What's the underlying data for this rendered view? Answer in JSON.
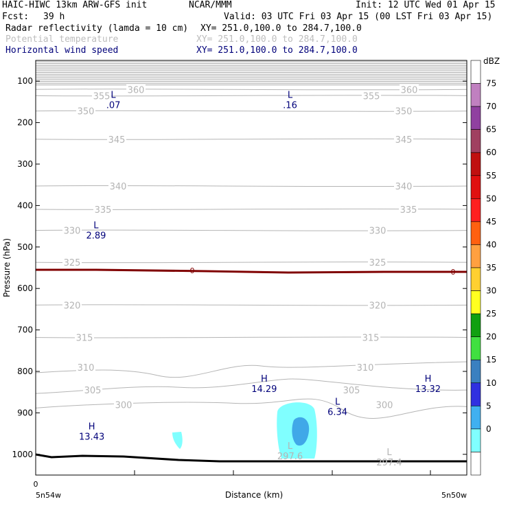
{
  "header": {
    "model": "HAIC-HIWC 13km ARW-GFS init",
    "org": "NCAR/MMM",
    "init": "Init: 12 UTC Wed 01 Apr 15",
    "fcst_label": "Fcst:",
    "fcst_value": "39 h",
    "valid": "Valid: 03 UTC Fri 03 Apr 15 (00 LST Fri 03 Apr 15)",
    "field1": "Radar reflectivity (lamda = 10 cm)",
    "field1_xy": "XY= 251.0,100.0 to 284.7,100.0",
    "field2": "Potential temperature",
    "field2_xy": "XY= 251.0,100.0 to 284.7,100.0",
    "field3": "Horizontal wind speed",
    "field3_xy": "XY= 251.0,100.0 to 284.7,100.0"
  },
  "colors": {
    "theta": "#b4b4b4",
    "wind": "#00007a",
    "freezing": "#800000",
    "terrain": "#000000"
  },
  "chart_data": {
    "type": "cross-section",
    "ylabel": "Pressure (hPa)",
    "xlabel": "Distance (km)",
    "y_ticks": [
      100,
      200,
      300,
      400,
      500,
      600,
      700,
      800,
      900,
      1000
    ],
    "ylim": [
      1050,
      50
    ],
    "x_start_label": "0",
    "x_left_label": "5n54w",
    "x_right_label": "5n50w",
    "theta_levels": [
      {
        "value": "300",
        "p": 880
      },
      {
        "value": "305",
        "p": 845
      },
      {
        "value": "310",
        "p": 790
      },
      {
        "value": "315",
        "p": 718
      },
      {
        "value": "320",
        "p": 640
      },
      {
        "value": "325",
        "p": 537
      },
      {
        "value": "330",
        "p": 460
      },
      {
        "value": "335",
        "p": 409
      },
      {
        "value": "340",
        "p": 353
      },
      {
        "value": "345",
        "p": 240
      },
      {
        "value": "350",
        "p": 172
      },
      {
        "value": "355",
        "p": 135
      },
      {
        "value": "360",
        "p": 120
      }
    ],
    "freezing_level": {
      "label": "0",
      "p": 558
    },
    "wind_extrema": [
      {
        "type": "L",
        "value": ".07",
        "x": 0.18,
        "p": 140
      },
      {
        "type": "L",
        "value": ".16",
        "x": 0.59,
        "p": 140
      },
      {
        "type": "L",
        "value": "2.89",
        "x": 0.14,
        "p": 455
      },
      {
        "type": "H",
        "value": "14.29",
        "x": 0.53,
        "p": 825
      },
      {
        "type": "H",
        "value": "13.32",
        "x": 0.91,
        "p": 825
      },
      {
        "type": "L",
        "value": "6.34",
        "x": 0.7,
        "p": 880
      },
      {
        "type": "H",
        "value": "13.43",
        "x": 0.13,
        "p": 940
      }
    ],
    "theta_extrema": [
      {
        "type": "L",
        "value": "297.6",
        "x": 0.59,
        "p": 1000
      },
      {
        "type": "L",
        "value": "297.4",
        "x": 0.82,
        "p": 1015
      }
    ],
    "colorbar": {
      "unit": "dBZ",
      "levels": [
        "75",
        "70",
        "65",
        "60",
        "55",
        "50",
        "45",
        "40",
        "35",
        "30",
        "25",
        "20",
        "15",
        "10",
        "5",
        "0"
      ],
      "colors": [
        "#ffffff",
        "#c080c0",
        "#9040a0",
        "#a04060",
        "#c01010",
        "#e01010",
        "#ff2020",
        "#ff6010",
        "#ffa040",
        "#ffd030",
        "#ffff20",
        "#10a010",
        "#40e040",
        "#3a80c0",
        "#3030e0",
        "#40b0f0",
        "#80ffff",
        "#ffffff"
      ]
    }
  }
}
